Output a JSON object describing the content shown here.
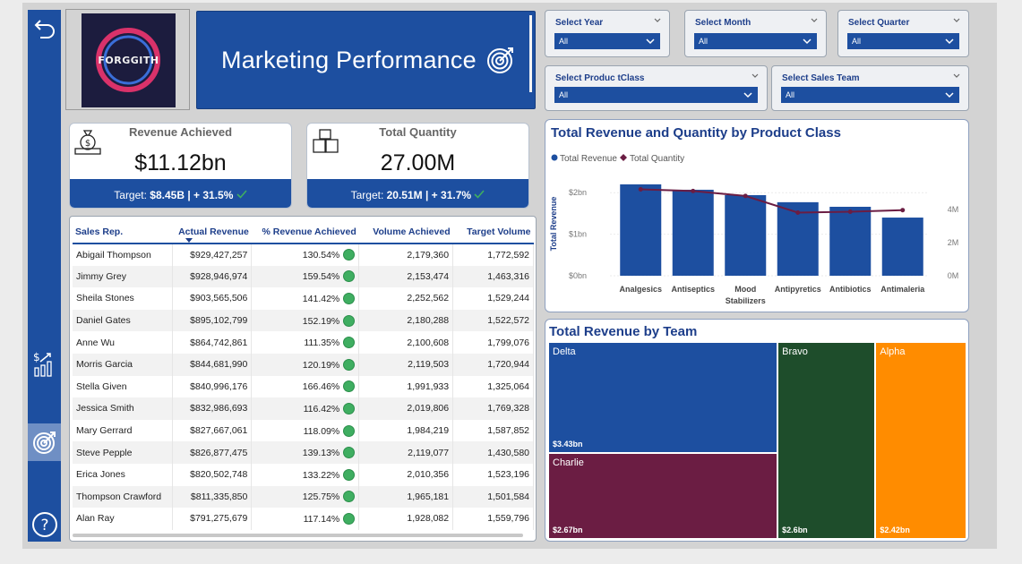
{
  "logo": {
    "text": "FORGGITH"
  },
  "header": {
    "title": "Marketing Performance"
  },
  "nav": {
    "icons": [
      "back-arrow-icon",
      "revenue-chart-icon",
      "target-icon",
      "help-icon"
    ]
  },
  "slicers": {
    "year": {
      "label": "Select Year",
      "value": "All"
    },
    "month": {
      "label": "Select Month",
      "value": "All"
    },
    "quarter": {
      "label": "Select Quarter",
      "value": "All"
    },
    "product_class": {
      "label": "Select Produc tClass",
      "value": "All"
    },
    "sales_team": {
      "label": "Select Sales Team",
      "value": "All"
    }
  },
  "kpis": {
    "revenue": {
      "title": "Revenue Achieved",
      "value": "$11.12bn",
      "target_label": "Target: ",
      "target_value": "$8.45B | + 31.5%"
    },
    "quantity": {
      "title": "Total Quantity",
      "value": "27.00M",
      "target_label": "Target: ",
      "target_value": "20.51M | + 31.7%"
    }
  },
  "table": {
    "headers": [
      "Sales Rep.",
      "Actual Revenue",
      "% Revenue Achieved",
      "Volume Achieved",
      "Target Volume"
    ],
    "rows": [
      [
        "Abigail Thompson",
        "$929,427,257",
        "130.54%",
        "2,179,360",
        "1,772,592"
      ],
      [
        "Jimmy Grey",
        "$928,946,974",
        "159.54%",
        "2,153,474",
        "1,463,316"
      ],
      [
        "Sheila Stones",
        "$903,565,506",
        "141.42%",
        "2,252,562",
        "1,529,244"
      ],
      [
        "Daniel Gates",
        "$895,102,799",
        "152.19%",
        "2,180,288",
        "1,522,572"
      ],
      [
        "Anne Wu",
        "$864,742,861",
        "111.35%",
        "2,100,608",
        "1,799,076"
      ],
      [
        "Morris Garcia",
        "$844,681,990",
        "120.19%",
        "2,119,503",
        "1,720,944"
      ],
      [
        "Stella Given",
        "$840,996,176",
        "166.46%",
        "1,991,933",
        "1,325,064"
      ],
      [
        "Jessica Smith",
        "$832,986,693",
        "116.42%",
        "2,019,806",
        "1,769,328"
      ],
      [
        "Mary Gerrard",
        "$827,667,061",
        "118.09%",
        "1,984,219",
        "1,587,852"
      ],
      [
        "Steve Pepple",
        "$826,877,475",
        "139.13%",
        "2,119,077",
        "1,430,580"
      ],
      [
        "Erica Jones",
        "$820,502,748",
        "133.22%",
        "2,010,356",
        "1,523,196"
      ],
      [
        "Thompson Crawford",
        "$811,335,850",
        "125.75%",
        "1,965,181",
        "1,501,584"
      ],
      [
        "Alan Ray",
        "$791,275,679",
        "117.14%",
        "1,928,082",
        "1,559,796"
      ]
    ]
  },
  "chart_data": [
    {
      "type": "bar",
      "title": "Total Revenue and Quantity by Product Class",
      "legend": [
        "Total Revenue",
        "Total Quantity"
      ],
      "ylabel": "Total Revenue",
      "categories": [
        "Analgesics",
        "Antiseptics",
        "Mood Stabilizers",
        "Antipyretics",
        "Antibiotics",
        "Antimaleria"
      ],
      "series": [
        {
          "name": "Total Revenue",
          "values": [
            2.2,
            2.07,
            1.94,
            1.77,
            1.66,
            1.4
          ],
          "color": "#1d4fa0"
        },
        {
          "name": "Total Quantity",
          "values": [
            5.2,
            5.1,
            4.8,
            3.8,
            3.85,
            3.95
          ],
          "color": "#6b1d43"
        }
      ],
      "y_ticks": [
        "$0bn",
        "$1bn",
        "$2bn"
      ],
      "y2_ticks": [
        "0M",
        "2M",
        "4M"
      ],
      "ylim": [
        0,
        2.5
      ],
      "y2lim": [
        0,
        6.25
      ]
    },
    {
      "type": "treemap",
      "title": "Total Revenue by Team",
      "items": [
        {
          "name": "Delta",
          "label": "$3.43bn",
          "value": 3.43,
          "color": "#1d4fa0"
        },
        {
          "name": "Charlie",
          "label": "$2.67bn",
          "value": 2.67,
          "color": "#6b1d43"
        },
        {
          "name": "Bravo",
          "label": "$2.6bn",
          "value": 2.6,
          "color": "#1e4d2b"
        },
        {
          "name": "Alpha",
          "label": "$2.42bn",
          "value": 2.42,
          "color": "#ff8c00"
        }
      ]
    }
  ]
}
